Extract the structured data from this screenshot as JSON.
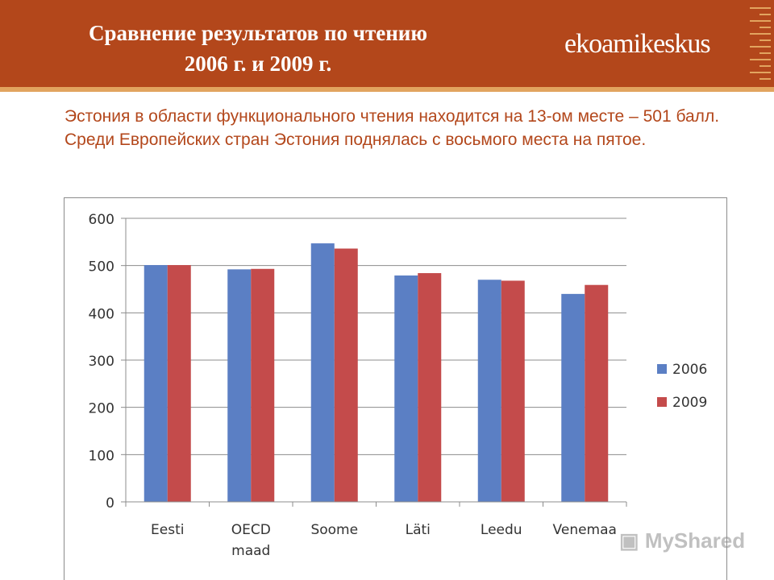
{
  "header": {
    "title_line1": "Сравнение результатов по чтению",
    "title_line2": "2006 г. и 2009 г.",
    "logo": "ekoamikeskus"
  },
  "intro": {
    "text": "Эстония в области функционального чтения находится на 13-ом месте – 501 балл. Среди Европейских стран Эстония поднялась с восьмого места на пятое."
  },
  "watermark": "MyShared",
  "colors": {
    "header_bg": "#b3471b",
    "header_accent": "#e2a45f",
    "series_2006": "#5b7fc4",
    "series_2009": "#c44b4b"
  },
  "chart_data": {
    "type": "bar",
    "categories": [
      [
        "Eesti"
      ],
      [
        "OECD",
        "maad"
      ],
      [
        "Soome"
      ],
      [
        "Läti"
      ],
      [
        "Leedu"
      ],
      [
        "Venemaa"
      ]
    ],
    "series": [
      {
        "name": "2006",
        "color": "#5b7fc4",
        "values": [
          501,
          492,
          547,
          479,
          470,
          440
        ]
      },
      {
        "name": "2009",
        "color": "#c44b4b",
        "values": [
          501,
          493,
          536,
          484,
          468,
          459
        ]
      }
    ],
    "yticks": [
      "0",
      "100",
      "200",
      "300",
      "400",
      "500",
      "600"
    ],
    "ylim": [
      0,
      600
    ],
    "grid": true,
    "legend": "right"
  }
}
